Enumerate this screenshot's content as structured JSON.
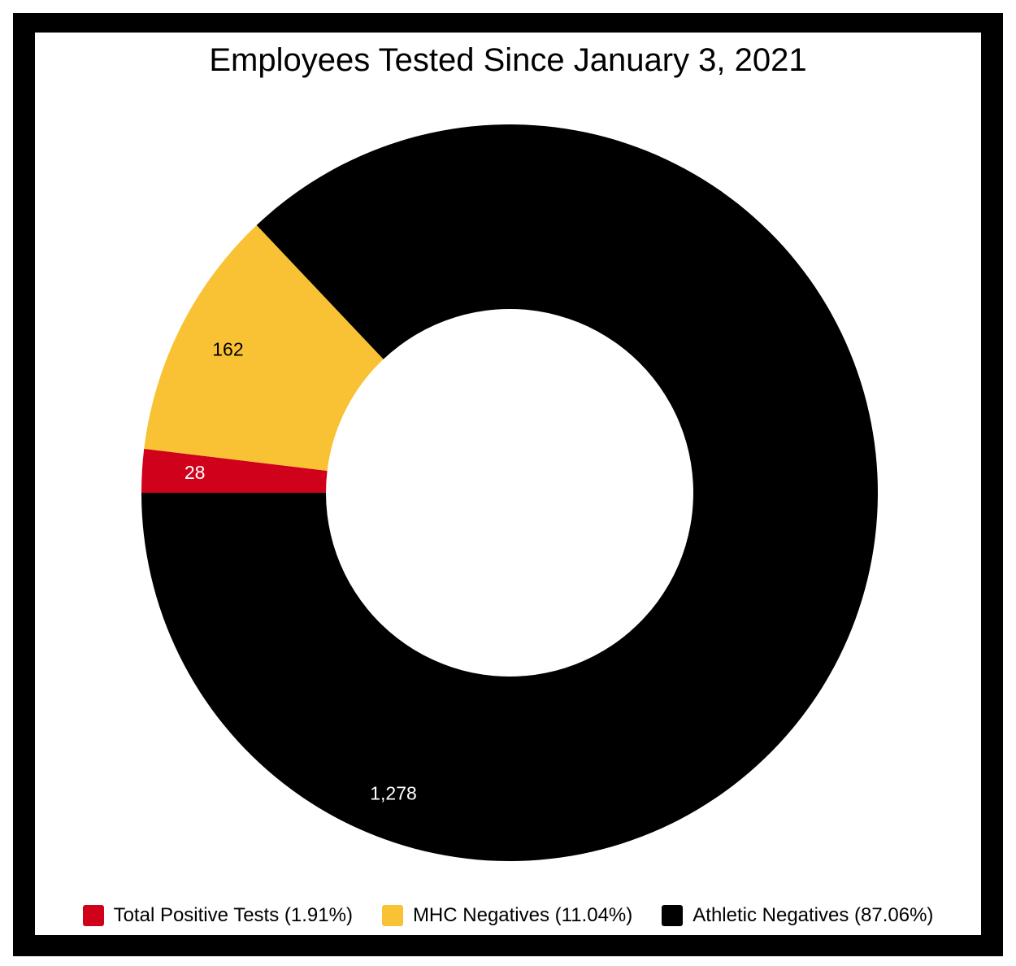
{
  "chart_data": {
    "type": "pie",
    "variant": "donut",
    "title": "Employees Tested Since January 3, 2021",
    "slices": [
      {
        "name": "Total Positive Tests (1.91%)",
        "value": 28,
        "label": "28",
        "color": "#d0021b",
        "label_color": "#ffffff"
      },
      {
        "name": "MHC Negatives (11.04%)",
        "value": 162,
        "label": "162",
        "color": "#f9c234",
        "label_color": "#000000"
      },
      {
        "name": "Athletic Negatives (87.06%)",
        "value": 1278,
        "label": "1,278",
        "color": "#000000",
        "label_color": "#ffffff"
      }
    ],
    "legend_position": "bottom"
  }
}
